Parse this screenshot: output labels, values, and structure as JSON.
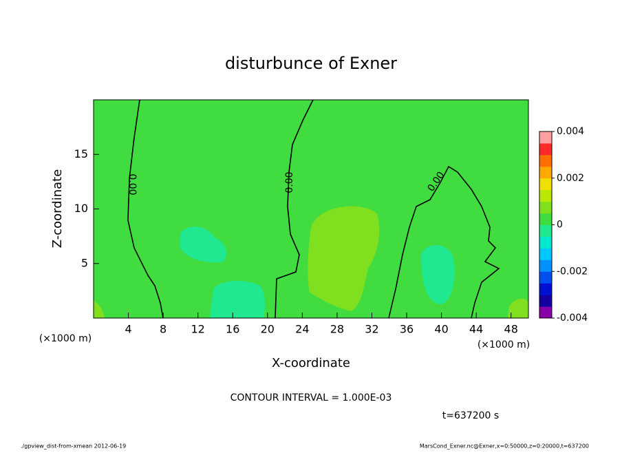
{
  "chart_data": {
    "type": "contour",
    "title": "disturbunce of Exner",
    "x_label": "X-coordinate",
    "y_label": "Z-coordinate",
    "x_unit": "(×1000 m)",
    "y_unit": "(×1000 m)",
    "xlim": [
      0,
      50
    ],
    "xticks": [
      4,
      8,
      12,
      16,
      20,
      24,
      28,
      32,
      36,
      40,
      44,
      48
    ],
    "ylim": [
      0,
      20
    ],
    "yticks": [
      5,
      10,
      15
    ],
    "zlim": [
      -0.004,
      0.004
    ],
    "zticks": [
      -0.004,
      -0.002,
      0,
      0.002,
      0.004
    ],
    "colors": [
      "#8a00a8",
      "#1400a0",
      "#0010d0",
      "#0050f0",
      "#0090ff",
      "#00c8ff",
      "#00e8d0",
      "#20e890",
      "#40dc40",
      "#80e020",
      "#b8e800",
      "#f0e000",
      "#ffa800",
      "#ff7000",
      "#ff2a2a",
      "#ffa0a0"
    ],
    "contour_labels": [
      "0.00",
      "0.00",
      "0.00"
    ],
    "contour_interval": "CONTOUR INTERVAL = 1.000E-03",
    "time": "t=637200 s",
    "footer_left": "./gpview_dist-from-xmean  2012-06-19",
    "footer_right": "MarsCond_Exner.nc@Exner,x=0:50000,z=0:20000,t=637200"
  }
}
